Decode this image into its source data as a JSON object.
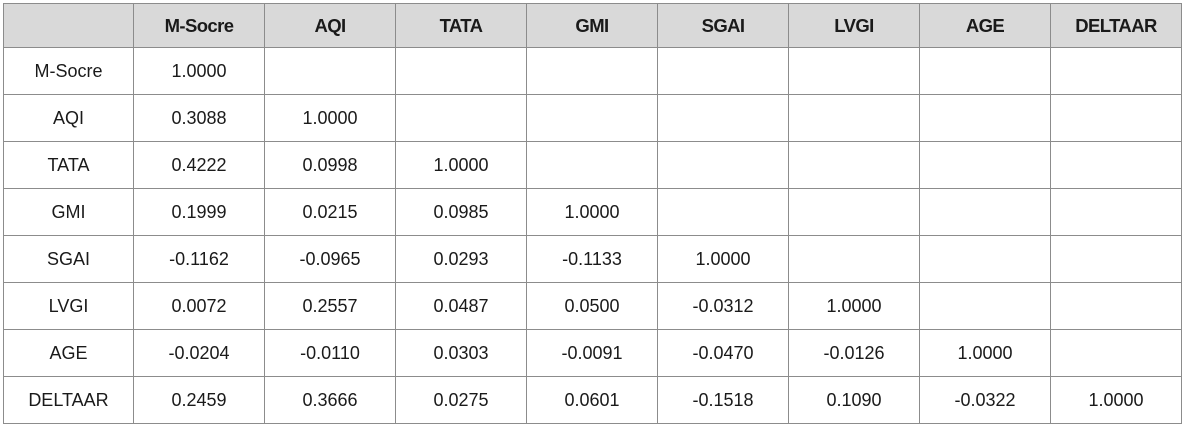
{
  "table": {
    "corner": "",
    "columns": [
      "M-Socre",
      "AQI",
      "TATA",
      "GMI",
      "SGAI",
      "LVGI",
      "AGE",
      "DELTAAR"
    ],
    "rows": [
      {
        "label": "M-Socre",
        "cells": [
          "1.0000",
          "",
          "",
          "",
          "",
          "",
          "",
          ""
        ]
      },
      {
        "label": "AQI",
        "cells": [
          "0.3088",
          "1.0000",
          "",
          "",
          "",
          "",
          "",
          ""
        ]
      },
      {
        "label": "TATA",
        "cells": [
          "0.4222",
          "0.0998",
          "1.0000",
          "",
          "",
          "",
          "",
          ""
        ]
      },
      {
        "label": "GMI",
        "cells": [
          "0.1999",
          "0.0215",
          "0.0985",
          "1.0000",
          "",
          "",
          "",
          ""
        ]
      },
      {
        "label": "SGAI",
        "cells": [
          "-0.1162",
          "-0.0965",
          "0.0293",
          "-0.1133",
          "1.0000",
          "",
          "",
          ""
        ]
      },
      {
        "label": "LVGI",
        "cells": [
          "0.0072",
          "0.2557",
          "0.0487",
          "0.0500",
          "-0.0312",
          "1.0000",
          "",
          ""
        ]
      },
      {
        "label": "AGE",
        "cells": [
          "-0.0204",
          "-0.0110",
          "0.0303",
          "-0.0091",
          "-0.0470",
          "-0.0126",
          "1.0000",
          ""
        ]
      },
      {
        "label": "DELTAAR",
        "cells": [
          "0.2459",
          "0.3666",
          "0.0275",
          "0.0601",
          "-0.1518",
          "0.1090",
          "-0.0322",
          "1.0000"
        ]
      }
    ]
  },
  "colors": {
    "header_background": "#d9d9d9",
    "border": "#8c8c8c",
    "text": "#1a1a1a"
  }
}
